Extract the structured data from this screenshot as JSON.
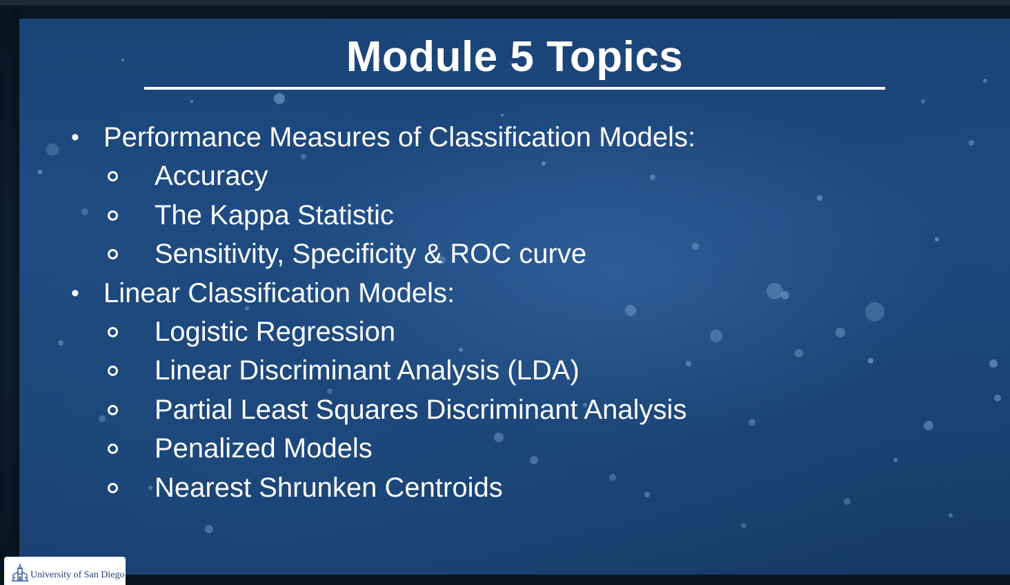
{
  "slide": {
    "title": "Module 5 Topics",
    "bullet_glyph": "•",
    "sections": [
      {
        "heading": "Performance Measures of Classification Models:",
        "items": [
          "Accuracy",
          "The Kappa Statistic",
          "Sensitivity, Specificity & ROC curve"
        ]
      },
      {
        "heading": "Linear Classification Models:",
        "items": [
          "Logistic Regression",
          "Linear Discriminant Analysis (LDA)",
          "Partial Least Squares Discriminant Analysis",
          "Penalized Models",
          "Nearest Shrunken Centroids"
        ]
      }
    ]
  },
  "logo": {
    "text": "University of San Diego",
    "icon": "usd-mission-icon"
  },
  "colors": {
    "slide_background": "#1d4a80",
    "text": "#ffffff",
    "logo_text": "#1e3f7a"
  }
}
